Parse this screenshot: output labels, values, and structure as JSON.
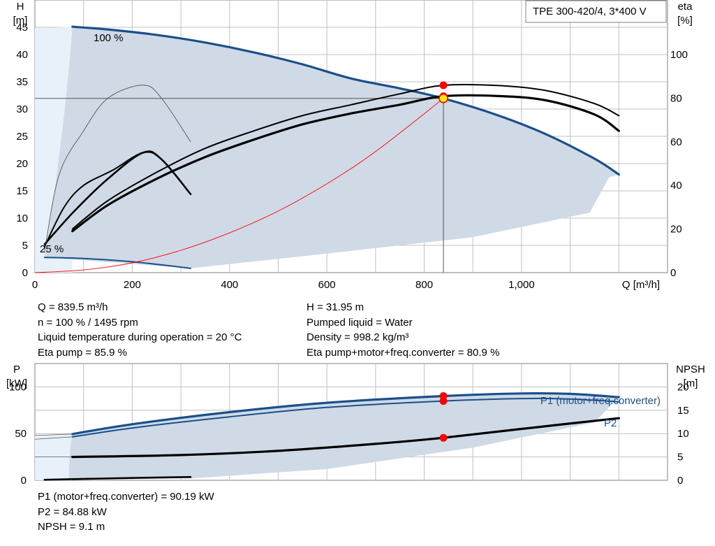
{
  "title_box": "TPE 300-420/4, 3*400 V",
  "colors": {
    "head_curve": "#1a4f8a",
    "region_fill": "#cfdae6",
    "region_light": "#e8f1fa",
    "duty_point": "#ff0000",
    "duty_marker_fill": "#ffee00",
    "grid": "#c0c0c0"
  },
  "top_chart": {
    "left_axis": {
      "label_line1": "H",
      "label_line2": "[m]",
      "ticks": [
        "0",
        "5",
        "10",
        "15",
        "20",
        "25",
        "30",
        "35",
        "40",
        "45"
      ]
    },
    "right_axis": {
      "label_line1": "eta",
      "label_line2": "[%]",
      "ticks": [
        "0",
        "20",
        "40",
        "60",
        "80",
        "100"
      ]
    },
    "x_axis": {
      "label": "Q [m³/h]",
      "ticks": [
        "0",
        "200",
        "400",
        "600",
        "800",
        "1,000"
      ]
    },
    "speed_labels": {
      "max": "100 %",
      "min": "25 %"
    }
  },
  "readout_top_left": [
    "Q = 839.5 m³/h",
    "n = 100 % / 1495 rpm",
    "Liquid temperature during operation = 20 °C",
    "Eta pump = 85.9 %"
  ],
  "readout_top_right": [
    "H = 31.95 m",
    "Pumped liquid = Water",
    "Density = 998.2 kg/m³",
    "Eta pump+motor+freq.converter = 80.9 %"
  ],
  "bottom_chart": {
    "left_axis": {
      "label_line1": "P",
      "label_line2": "[kW]",
      "ticks": [
        "0",
        "50",
        "100"
      ]
    },
    "right_axis": {
      "label_line1": "NPSH",
      "label_line2": "[m]",
      "ticks": [
        "0",
        "5",
        "10",
        "15",
        "20"
      ]
    },
    "series_labels": {
      "p1": "P1 (motor+freq.converter)",
      "p2": "P2"
    }
  },
  "readout_bottom": [
    "P1 (motor+freq.converter) = 90.19 kW",
    "P2 = 84.88 kW",
    "NPSH = 9.1 m"
  ],
  "chart_data": [
    {
      "type": "line",
      "title": "TPE 300-420/4, 3*400 V",
      "xlabel": "Q [m³/h]",
      "ylabel": "H [m]",
      "y2label": "eta [%]",
      "xlim": [
        0,
        1300
      ],
      "ylim": [
        0,
        50
      ],
      "y2lim": [
        0,
        125
      ],
      "grid": true,
      "duty_point": {
        "Q": 839.5,
        "H": 31.95,
        "eta_pump": 85.9,
        "eta_total": 80.9
      },
      "series": [
        {
          "axis": "left",
          "role": "head_100",
          "x": [
            77,
            150,
            250,
            350,
            450,
            550,
            650,
            750,
            839.5,
            950,
            1050,
            1150,
            1200
          ],
          "y": [
            45.1,
            44.6,
            43.6,
            42.2,
            40.4,
            38.2,
            35.6,
            33.8,
            31.95,
            28.9,
            25.4,
            20.9,
            18.0
          ]
        },
        {
          "axis": "left",
          "role": "head_min",
          "x": [
            20,
            100,
            200,
            320
          ],
          "y": [
            2.8,
            2.6,
            2.0,
            0.8
          ]
        },
        {
          "axis": "left",
          "role": "system_curve",
          "x": [
            0,
            100,
            200,
            300,
            400,
            500,
            600,
            700,
            839.5
          ],
          "y": [
            0,
            0.5,
            1.8,
            4.1,
            7.3,
            11.3,
            16.3,
            22.2,
            31.95
          ]
        },
        {
          "axis": "right",
          "role": "eta_pump_100",
          "x": [
            77,
            150,
            250,
            350,
            450,
            550,
            650,
            750,
            839.5,
            950,
            1050,
            1150,
            1200
          ],
          "y": [
            20,
            33,
            46,
            57,
            65,
            72,
            77,
            82,
            85.9,
            85.8,
            83.5,
            77.5,
            72
          ]
        },
        {
          "axis": "right",
          "role": "eta_total_100",
          "x": [
            77,
            150,
            250,
            350,
            450,
            550,
            650,
            750,
            839.5,
            950,
            1050,
            1150,
            1200
          ],
          "y": [
            19,
            31,
            43,
            53,
            61,
            68,
            73,
            77,
            80.9,
            81,
            79,
            72.5,
            65
          ]
        },
        {
          "axis": "right",
          "role": "eta_pump_low",
          "x": [
            20,
            60,
            100,
            160,
            222,
            260,
            320
          ],
          "y": [
            12,
            30,
            40,
            47,
            55,
            52,
            36
          ]
        },
        {
          "axis": "right",
          "role": "eta_total_low",
          "x": [
            20,
            80,
            150,
            222,
            260,
            320
          ],
          "y": [
            13,
            28,
            43,
            55,
            52,
            36
          ]
        },
        {
          "axis": "right",
          "role": "eta_thin",
          "x": [
            20,
            50,
            100,
            150,
            222,
            260,
            320
          ],
          "y": [
            10,
            45,
            65,
            80,
            86,
            80,
            60
          ]
        }
      ]
    },
    {
      "type": "line",
      "ylabel": "P [kW]",
      "y2label": "NPSH [m]",
      "xlim": [
        0,
        1300
      ],
      "ylim": [
        0,
        125
      ],
      "y2lim": [
        0,
        25
      ],
      "grid": true,
      "duty_point": {
        "Q": 839.5,
        "P1": 90.19,
        "P2": 84.88,
        "NPSH": 9.1
      },
      "series": [
        {
          "axis": "left",
          "name": "P1 (motor+freq.converter)",
          "x": [
            77,
            200,
            400,
            600,
            839.5,
            1000,
            1100,
            1200
          ],
          "y": [
            49.5,
            60,
            73,
            83,
            90.19,
            93,
            92.5,
            89
          ]
        },
        {
          "axis": "left",
          "role": "p2_curve",
          "x": [
            77,
            200,
            400,
            600,
            839.5,
            1000,
            1100,
            1200
          ],
          "y": [
            46.5,
            56,
            68,
            78,
            84.88,
            87.5,
            87,
            84
          ]
        },
        {
          "axis": "left",
          "role": "p_low",
          "x": [
            20,
            100,
            200,
            320
          ],
          "y": [
            0.5,
            1.5,
            2.5,
            3.5
          ]
        },
        {
          "axis": "right",
          "name": "P2",
          "x": [
            77,
            300,
            500,
            700,
            839.5,
            1000,
            1200
          ],
          "y": [
            5.0,
            5.4,
            6.3,
            7.8,
            9.1,
            11.0,
            13.3
          ]
        }
      ]
    }
  ]
}
